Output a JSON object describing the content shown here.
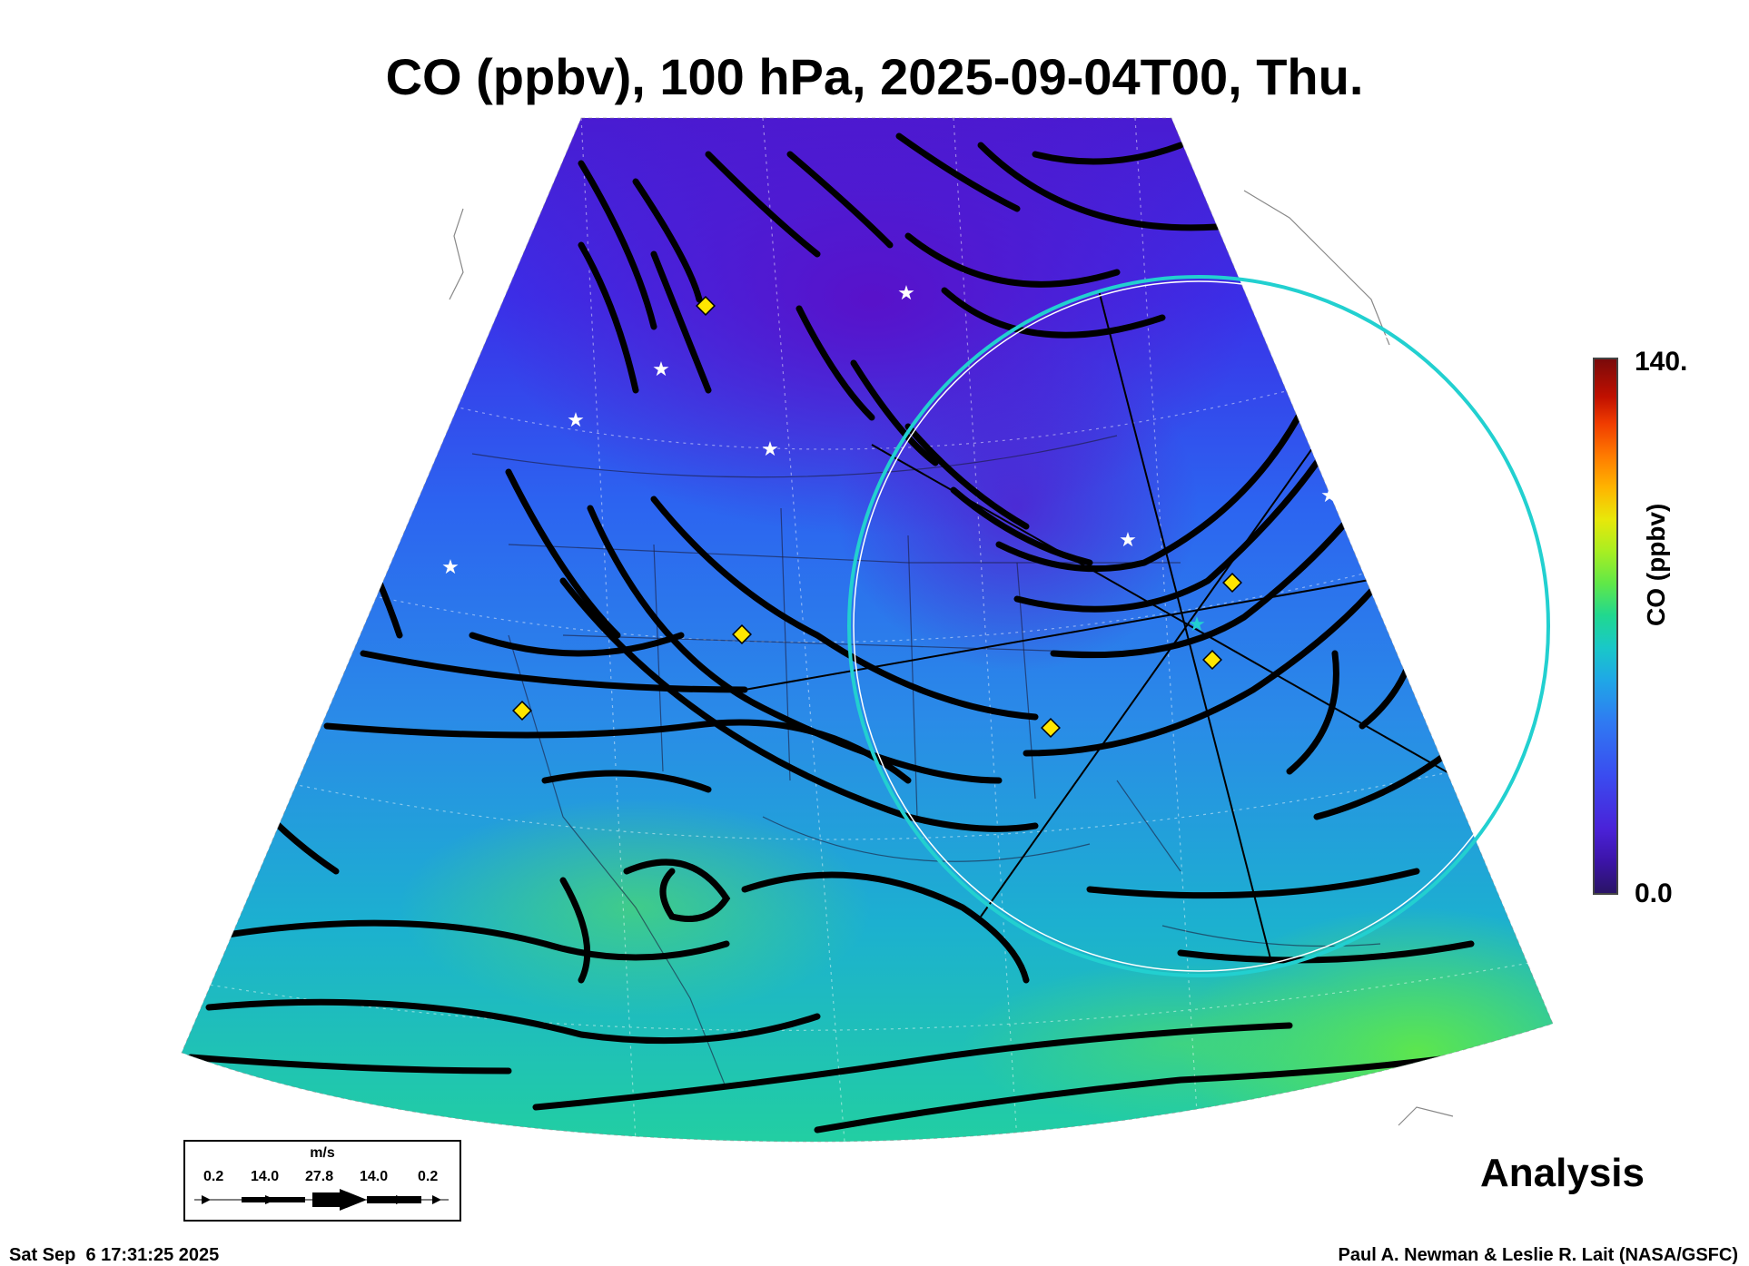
{
  "title": "CO (ppbv), 100 hPa, 2025-09-04T00, Thu.",
  "colorbar": {
    "max_label": "140.",
    "min_label": "0.0",
    "label": "CO (ppbv)",
    "range": [
      0,
      140
    ]
  },
  "legend": {
    "unit": "m/s",
    "values": [
      "0.2",
      "14.0",
      "27.8",
      "14.0",
      "0.2"
    ]
  },
  "analysis_label": "Analysis",
  "footer": {
    "timestamp": "Sat Sep  6 17:31:25 2025",
    "credit": "Paul A. Newman & Leslie R. Lait (NASA/GSFC)"
  },
  "colors": {
    "low_co": "#4a22d8",
    "mid_co": "#2f7af2",
    "high_co": "#20d890",
    "streamline": "#000000",
    "ring": "#22d0d0",
    "marker_diamond": "#ffe600",
    "marker_star": "#ffffff"
  },
  "icons": [
    "diamond-marker-icon",
    "star-marker-icon",
    "wind-arrow-icon"
  ]
}
